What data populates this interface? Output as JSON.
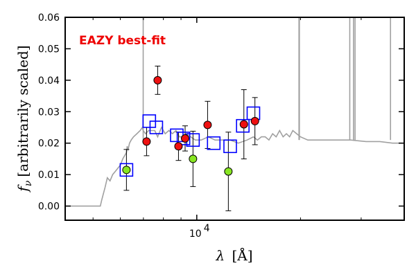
{
  "chart_data": {
    "type": "scatter",
    "title": "",
    "annotation": "EAZY best-fit",
    "xlabel": "λ [Å]",
    "ylabel": "f_ν [arbitrarily scaled]",
    "ylabel_symbol": "f",
    "ylabel_subscript": "ν",
    "ylabel_text": "[arbitrarily scaled]",
    "xlabel_symbol": "λ",
    "xlabel_text": "[Å]",
    "x_scale": "log",
    "xlim": [
      4150,
      40000
    ],
    "ylim": [
      -0.0045,
      0.06
    ],
    "yticks": [
      0.0,
      0.01,
      0.02,
      0.03,
      0.04,
      0.05,
      0.06
    ],
    "ytick_labels": [
      "0.00",
      "0.01",
      "0.02",
      "0.03",
      "0.04",
      "0.05",
      "0.06"
    ],
    "xticks": [
      10000
    ],
    "xtick_labels": [
      "10",
      "4"
    ],
    "colors": {
      "annotation": "#ee0000",
      "model": "#a0a0a0",
      "model_points": "#0000ff",
      "red_points": "#ee1111",
      "green_points": "#88e622",
      "errorbars": "#000000"
    },
    "series": [
      {
        "name": "",
        "kind": "model_spectrum",
        "x": [
          4150,
          5150,
          5250,
          5300,
          5420,
          5500,
          5600,
          5700,
          5800,
          5900,
          6000,
          6100,
          6250,
          6280,
          6320,
          6380,
          6450,
          6550,
          6700,
          6850,
          6950,
          6990,
          7100,
          7250,
          7400,
          7550,
          7700,
          7900,
          8100,
          8300,
          8500,
          8700,
          8900,
          9100,
          9300,
          9600,
          9900,
          10300,
          10800,
          11300,
          11900,
          12500,
          13200,
          14000,
          14600,
          15000,
          15400,
          15800,
          16200,
          16600,
          17000,
          17400,
          17800,
          18200,
          18600,
          19000,
          19500,
          20000,
          21000,
          22000,
          24000,
          26000,
          28000,
          31000,
          34000,
          37000,
          40000
        ],
        "y": [
          0.0,
          0.0,
          0.0,
          0.002,
          0.006,
          0.009,
          0.008,
          0.01,
          0.011,
          0.012,
          0.013,
          0.015,
          0.017,
          0.019,
          0.018,
          0.02,
          0.021,
          0.022,
          0.023,
          0.024,
          0.025,
          0.024,
          0.023,
          0.024,
          0.024,
          0.024,
          0.022,
          0.025,
          0.023,
          0.024,
          0.023,
          0.024,
          0.022,
          0.022,
          0.023,
          0.022,
          0.021,
          0.021,
          0.022,
          0.021,
          0.021,
          0.021,
          0.02,
          0.021,
          0.022,
          0.021,
          0.022,
          0.022,
          0.021,
          0.023,
          0.022,
          0.024,
          0.022,
          0.023,
          0.022,
          0.024,
          0.023,
          0.022,
          0.021,
          0.021,
          0.021,
          0.021,
          0.021,
          0.0205,
          0.0205,
          0.02,
          0.02
        ]
      },
      {
        "name": "",
        "kind": "emission_lines",
        "x": [
          6990,
          19800,
          19850,
          27800,
          28500,
          28800,
          36500
        ],
        "y": [
          0.06,
          0.06,
          0.06,
          0.06,
          0.06,
          0.06,
          0.06
        ]
      },
      {
        "name": "",
        "kind": "model_fluxes",
        "x": [
          6250,
          7280,
          7630,
          8750,
          9150,
          9750,
          11200,
          12500,
          13600,
          14600
        ],
        "y": [
          0.0115,
          0.027,
          0.025,
          0.0225,
          0.0215,
          0.021,
          0.02,
          0.019,
          0.0255,
          0.0295
        ]
      },
      {
        "name": "",
        "kind": "observed_fluxes",
        "x": [
          7150,
          7700,
          8850,
          9250,
          10750,
          13700,
          14750
        ],
        "y": [
          0.0205,
          0.04,
          0.019,
          0.0215,
          0.0258,
          0.026,
          0.027
        ],
        "yerr": [
          0.0045,
          0.0045,
          0.0045,
          0.004,
          0.0075,
          0.011,
          0.0075
        ]
      },
      {
        "name": "",
        "kind": "observed_fluxes_green",
        "x": [
          6250,
          9750,
          12350
        ],
        "y": [
          0.0115,
          0.015,
          0.011
        ],
        "yerr": [
          0.0065,
          0.0088,
          0.0125
        ]
      }
    ]
  }
}
